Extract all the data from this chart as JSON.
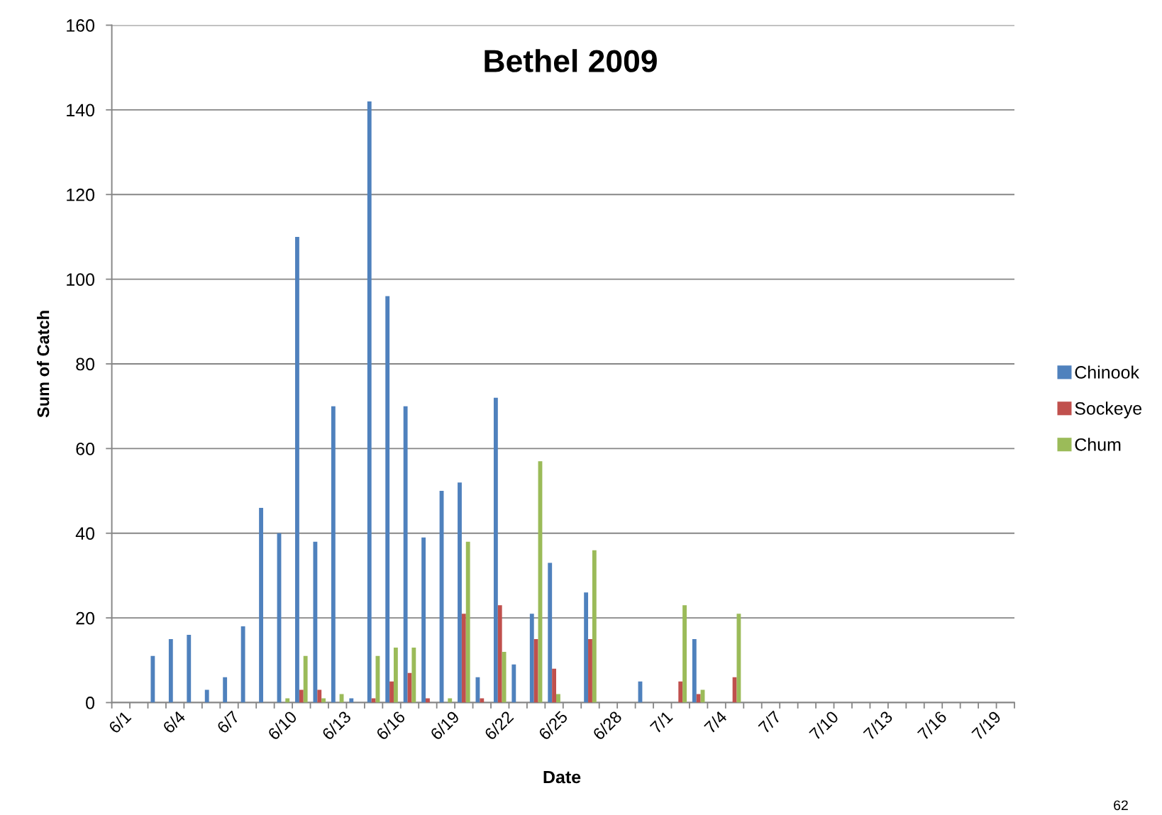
{
  "chart_data": {
    "type": "bar",
    "title": "Bethel 2009",
    "xlabel": "Date",
    "ylabel": "Sum of Catch",
    "categories": [
      "6/1",
      null,
      null,
      "6/4",
      null,
      null,
      "6/7",
      null,
      null,
      "6/10",
      null,
      null,
      "6/13",
      null,
      null,
      "6/16",
      null,
      null,
      "6/19",
      null,
      null,
      "6/22",
      null,
      null,
      "6/25",
      null,
      null,
      "6/28",
      null,
      null,
      "7/1",
      null,
      null,
      "7/4",
      null,
      null,
      "7/7",
      null,
      null,
      "7/10",
      null,
      null,
      "7/13",
      null,
      null,
      "7/16",
      null,
      null,
      "7/19",
      null
    ],
    "series": [
      {
        "name": "Chinook",
        "color": "#4f81bd",
        "values": [
          null,
          null,
          11,
          15,
          16,
          3,
          6,
          18,
          46,
          40,
          110,
          38,
          70,
          1,
          142,
          96,
          70,
          39,
          50,
          52,
          6,
          72,
          9,
          21,
          33,
          null,
          26,
          null,
          null,
          5,
          null,
          null,
          15,
          null,
          null,
          null,
          null,
          null,
          null,
          null,
          null,
          null,
          null,
          null,
          null,
          null,
          null,
          null,
          null,
          null
        ]
      },
      {
        "name": "Sockeye",
        "color": "#c0504d",
        "values": [
          null,
          null,
          null,
          null,
          null,
          null,
          null,
          null,
          null,
          null,
          3,
          3,
          null,
          null,
          1,
          5,
          7,
          1,
          null,
          21,
          1,
          23,
          null,
          15,
          8,
          null,
          15,
          null,
          null,
          null,
          null,
          5,
          2,
          null,
          6,
          null,
          null,
          null,
          null,
          null,
          null,
          null,
          null,
          null,
          null,
          null,
          null,
          null,
          null,
          null
        ]
      },
      {
        "name": "Chum",
        "color": "#9bbb59",
        "values": [
          null,
          null,
          null,
          null,
          null,
          null,
          null,
          null,
          null,
          1,
          11,
          1,
          2,
          null,
          11,
          13,
          13,
          null,
          1,
          38,
          null,
          12,
          null,
          57,
          2,
          null,
          36,
          null,
          null,
          null,
          null,
          23,
          3,
          null,
          21,
          null,
          null,
          null,
          null,
          null,
          null,
          null,
          null,
          null,
          null,
          null,
          null,
          null,
          null,
          null
        ]
      }
    ],
    "ylim": [
      0,
      160
    ],
    "yticks": [
      0,
      20,
      40,
      60,
      80,
      100,
      120,
      140,
      160
    ],
    "grid": "y",
    "legend": "right",
    "annotations": [
      "62"
    ]
  }
}
